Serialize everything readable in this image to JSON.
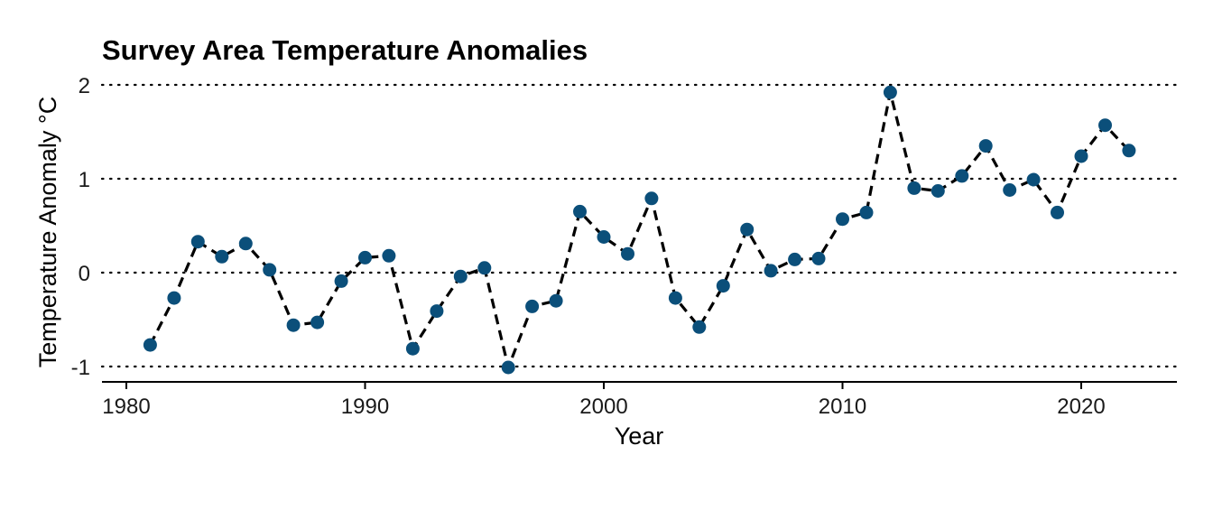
{
  "chart_data": {
    "type": "line",
    "title": "Survey Area Temperature Anomalies",
    "xlabel": "Year",
    "ylabel": "Temperature Anomaly °C",
    "xlim": [
      1979,
      2024
    ],
    "ylim": [
      -1.15,
      2.1
    ],
    "xticks": [
      1980,
      1990,
      2000,
      2010,
      2020
    ],
    "yticks": [
      -1,
      0,
      1,
      2
    ],
    "grid": "horizontal dotted",
    "line_style": "dashed",
    "colors": {
      "point": "#0b4f7a",
      "line": "#000000"
    },
    "x": [
      1981,
      1982,
      1983,
      1984,
      1985,
      1986,
      1987,
      1988,
      1989,
      1990,
      1991,
      1992,
      1993,
      1994,
      1995,
      1996,
      1997,
      1998,
      1999,
      2000,
      2001,
      2002,
      2003,
      2004,
      2005,
      2006,
      2007,
      2008,
      2009,
      2010,
      2011,
      2012,
      2013,
      2014,
      2015,
      2016,
      2017,
      2018,
      2019,
      2020,
      2021,
      2022
    ],
    "values": [
      -0.77,
      -0.27,
      0.33,
      0.17,
      0.31,
      0.03,
      -0.56,
      -0.53,
      -0.09,
      0.16,
      0.18,
      -0.81,
      -0.41,
      -0.04,
      0.05,
      -1.01,
      -0.36,
      -0.3,
      0.65,
      0.38,
      0.2,
      0.79,
      -0.27,
      -0.58,
      -0.14,
      0.46,
      0.02,
      0.14,
      0.15,
      0.57,
      0.64,
      1.92,
      0.9,
      0.87,
      1.03,
      1.35,
      0.88,
      0.99,
      0.64,
      1.24,
      1.57,
      1.3
    ]
  }
}
